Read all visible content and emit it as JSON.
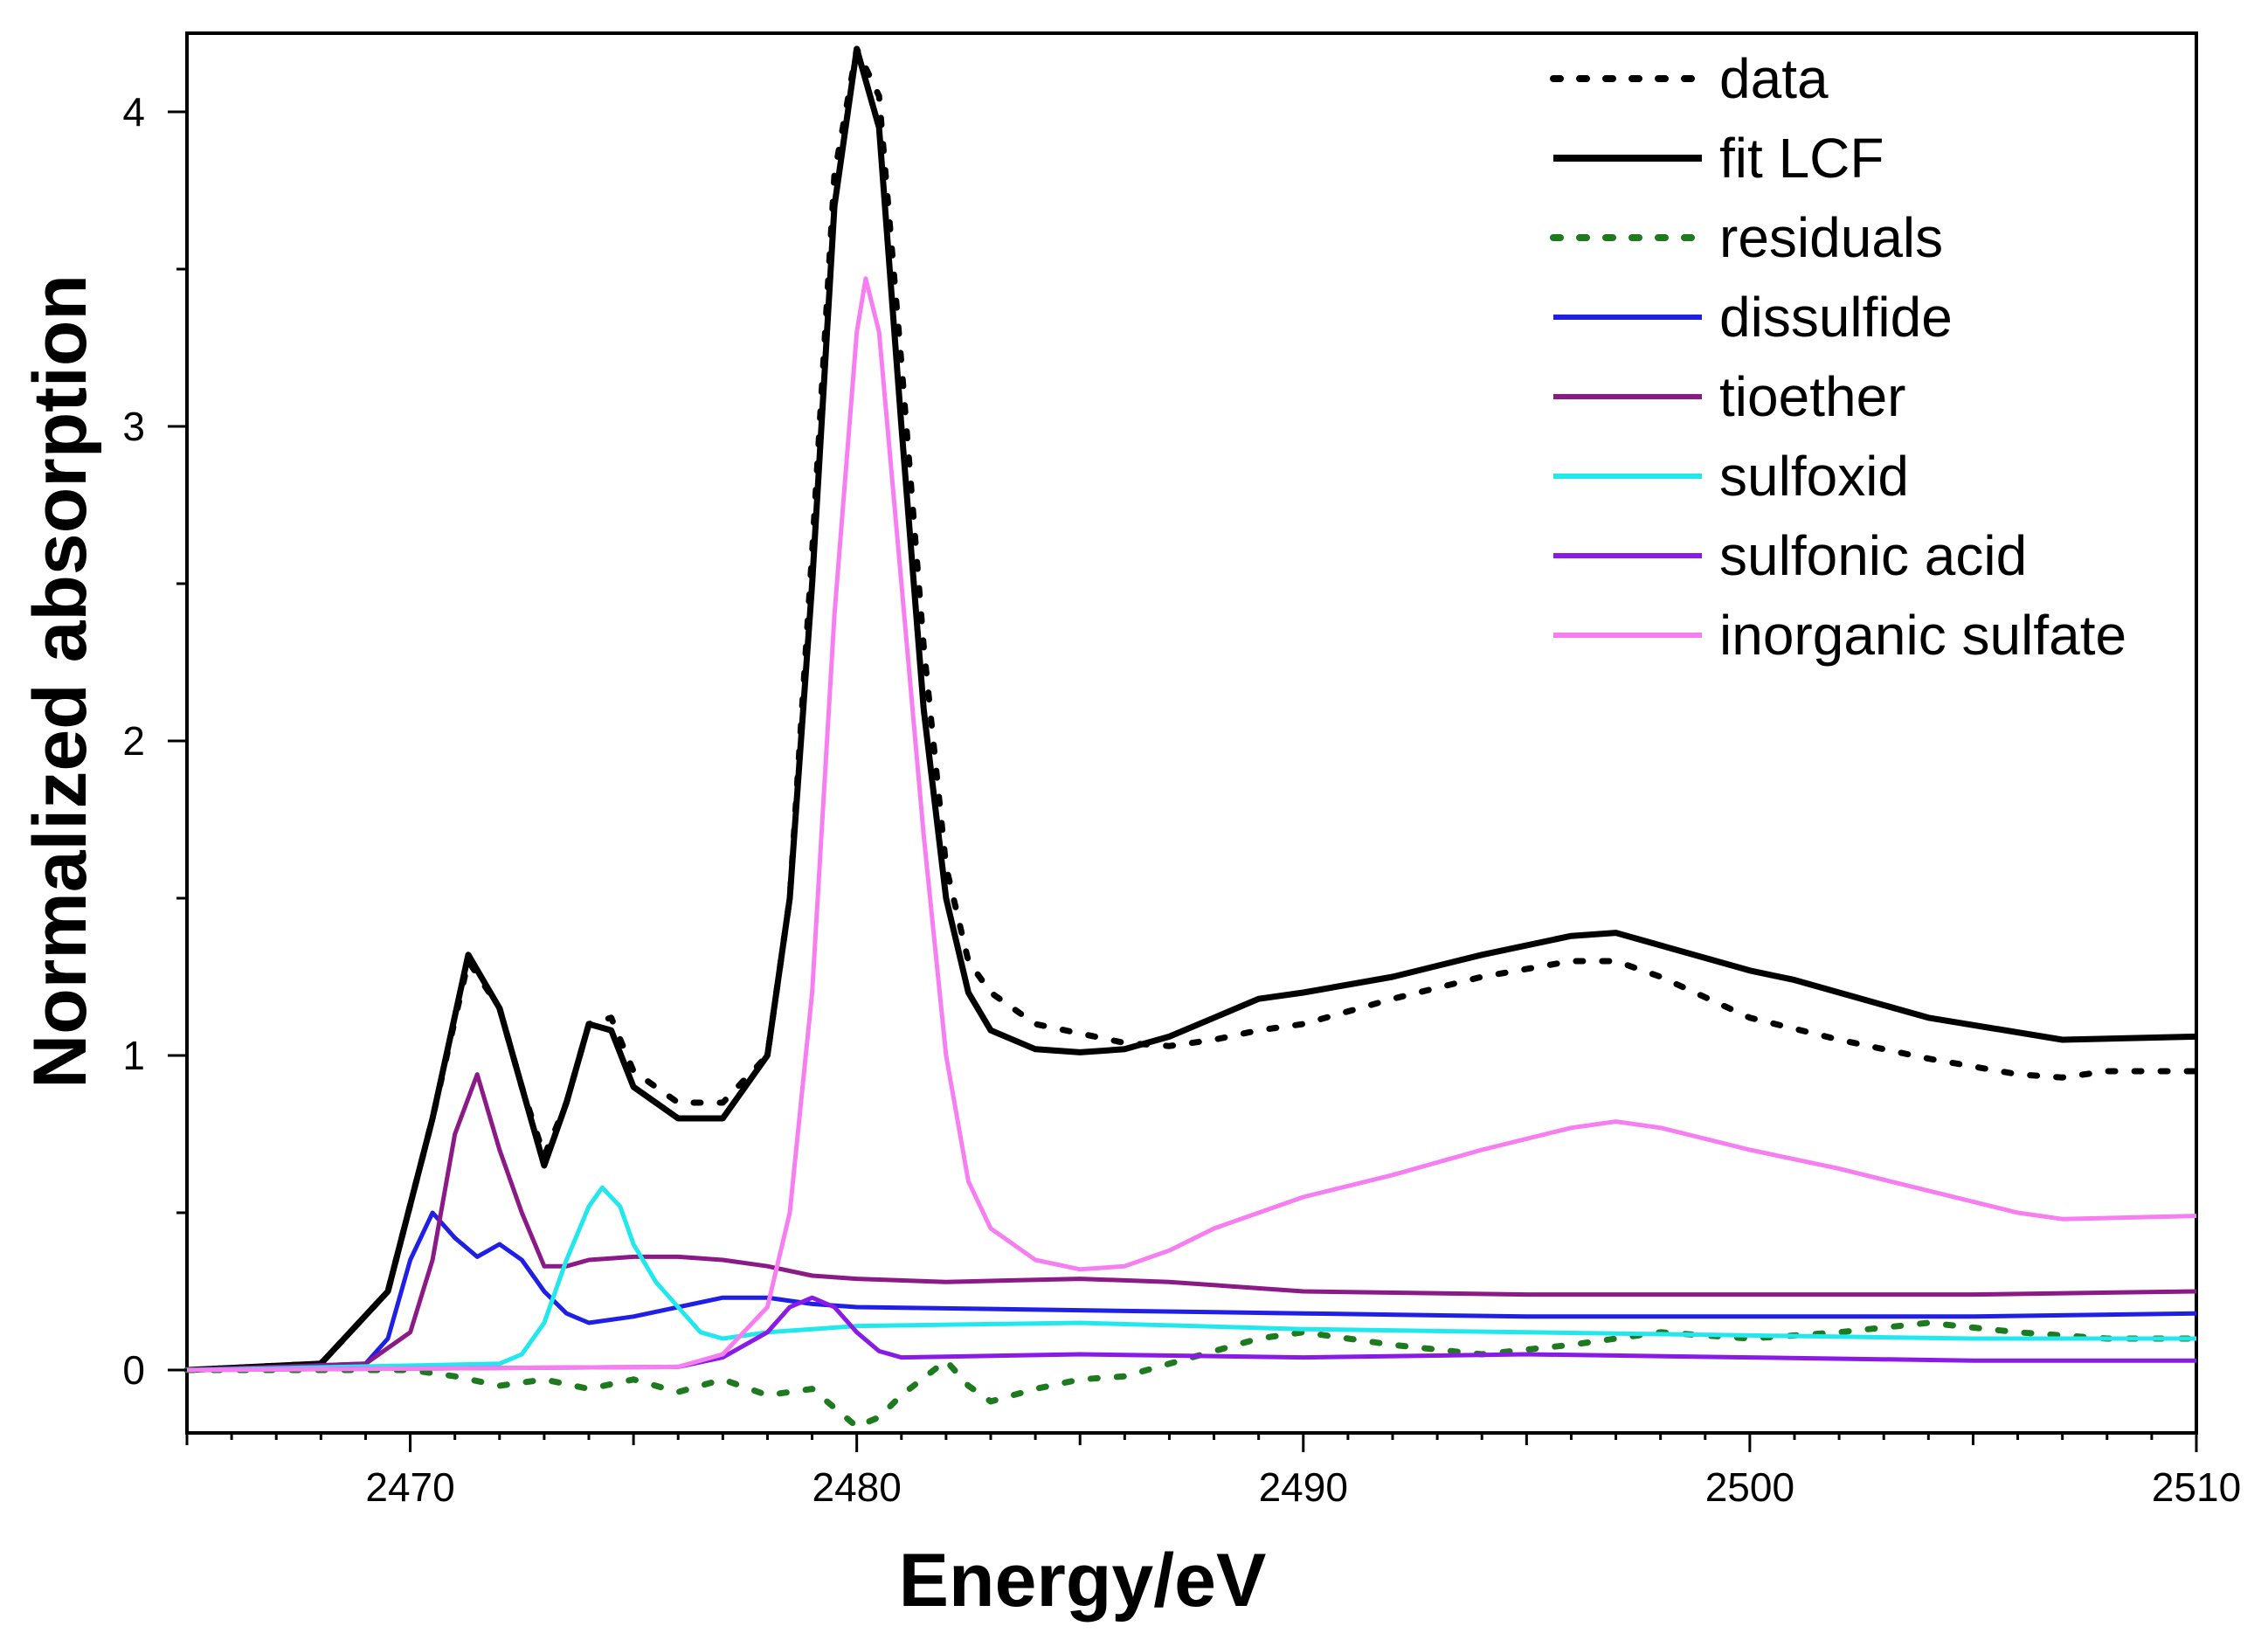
{
  "chart_data": {
    "type": "line",
    "title": "",
    "xlabel": "Energy/eV",
    "ylabel": "Normalized absorption",
    "xlim": [
      2465,
      2510
    ],
    "ylim": [
      -0.2,
      4.25
    ],
    "x_major_ticks": [
      2470,
      2480,
      2490,
      2500,
      2510
    ],
    "x_tick_labels": [
      "2470",
      "2480",
      "2490",
      "2500",
      "2510"
    ],
    "y_major_ticks": [
      0,
      1,
      2,
      3,
      4
    ],
    "y_tick_labels": [
      "0",
      "1",
      "2",
      "3",
      "4"
    ],
    "grid": false,
    "legend_position": "top-right",
    "series": [
      {
        "name": "data",
        "color": "#000000",
        "style": "dotted",
        "width": 7,
        "points": [
          [
            2465,
            0
          ],
          [
            2468,
            0.02
          ],
          [
            2469.5,
            0.25
          ],
          [
            2470.5,
            0.8
          ],
          [
            2471.3,
            1.3
          ],
          [
            2472,
            1.15
          ],
          [
            2472.5,
            0.9
          ],
          [
            2473,
            0.68
          ],
          [
            2473.5,
            0.85
          ],
          [
            2474,
            1.1
          ],
          [
            2474.5,
            1.12
          ],
          [
            2475,
            0.95
          ],
          [
            2476,
            0.85
          ],
          [
            2477,
            0.85
          ],
          [
            2478,
            1.0
          ],
          [
            2478.5,
            1.5
          ],
          [
            2479,
            2.6
          ],
          [
            2479.5,
            3.8
          ],
          [
            2480,
            4.2
          ],
          [
            2480.5,
            4.05
          ],
          [
            2481,
            3.2
          ],
          [
            2481.5,
            2.3
          ],
          [
            2482,
            1.6
          ],
          [
            2482.5,
            1.3
          ],
          [
            2483,
            1.2
          ],
          [
            2484,
            1.1
          ],
          [
            2485,
            1.07
          ],
          [
            2486,
            1.04
          ],
          [
            2487,
            1.03
          ],
          [
            2488,
            1.05
          ],
          [
            2489,
            1.08
          ],
          [
            2490,
            1.1
          ],
          [
            2492,
            1.18
          ],
          [
            2494,
            1.25
          ],
          [
            2496,
            1.3
          ],
          [
            2497,
            1.3
          ],
          [
            2498,
            1.25
          ],
          [
            2500,
            1.12
          ],
          [
            2502,
            1.05
          ],
          [
            2504,
            0.99
          ],
          [
            2506,
            0.94
          ],
          [
            2507,
            0.93
          ],
          [
            2508,
            0.95
          ],
          [
            2510,
            0.95
          ]
        ]
      },
      {
        "name": "fit LCF",
        "color": "#000000",
        "style": "solid",
        "width": 7,
        "points": [
          [
            2465,
            0
          ],
          [
            2468,
            0.02
          ],
          [
            2469.5,
            0.25
          ],
          [
            2470.5,
            0.8
          ],
          [
            2471.3,
            1.32
          ],
          [
            2472,
            1.15
          ],
          [
            2472.5,
            0.9
          ],
          [
            2473,
            0.65
          ],
          [
            2473.5,
            0.85
          ],
          [
            2474,
            1.1
          ],
          [
            2474.5,
            1.08
          ],
          [
            2475,
            0.9
          ],
          [
            2476,
            0.8
          ],
          [
            2477,
            0.8
          ],
          [
            2478,
            1.0
          ],
          [
            2478.5,
            1.5
          ],
          [
            2479,
            2.5
          ],
          [
            2479.5,
            3.7
          ],
          [
            2480,
            4.2
          ],
          [
            2480.5,
            3.95
          ],
          [
            2481,
            3.0
          ],
          [
            2481.5,
            2.1
          ],
          [
            2482,
            1.5
          ],
          [
            2482.5,
            1.2
          ],
          [
            2483,
            1.08
          ],
          [
            2484,
            1.02
          ],
          [
            2485,
            1.01
          ],
          [
            2486,
            1.02
          ],
          [
            2487,
            1.06
          ],
          [
            2488,
            1.12
          ],
          [
            2489,
            1.18
          ],
          [
            2490,
            1.2
          ],
          [
            2492,
            1.25
          ],
          [
            2494,
            1.32
          ],
          [
            2496,
            1.38
          ],
          [
            2497,
            1.39
          ],
          [
            2498,
            1.35
          ],
          [
            2500,
            1.27
          ],
          [
            2501,
            1.24
          ],
          [
            2502,
            1.2
          ],
          [
            2504,
            1.12
          ],
          [
            2507,
            1.05
          ],
          [
            2510,
            1.06
          ]
        ]
      },
      {
        "name": "residuals",
        "color": "#1e7a1e",
        "style": "dotted",
        "width": 7,
        "points": [
          [
            2465,
            0
          ],
          [
            2470,
            0
          ],
          [
            2471,
            -0.02
          ],
          [
            2472,
            -0.05
          ],
          [
            2473,
            -0.03
          ],
          [
            2474,
            -0.06
          ],
          [
            2475,
            -0.03
          ],
          [
            2476,
            -0.07
          ],
          [
            2477,
            -0.03
          ],
          [
            2478,
            -0.08
          ],
          [
            2479,
            -0.06
          ],
          [
            2479.5,
            -0.12
          ],
          [
            2480,
            -0.18
          ],
          [
            2480.5,
            -0.15
          ],
          [
            2481,
            -0.08
          ],
          [
            2482,
            0.03
          ],
          [
            2482.5,
            -0.05
          ],
          [
            2483,
            -0.1
          ],
          [
            2484,
            -0.06
          ],
          [
            2485,
            -0.03
          ],
          [
            2486,
            -0.02
          ],
          [
            2487,
            0.02
          ],
          [
            2488,
            0.06
          ],
          [
            2489,
            0.1
          ],
          [
            2490,
            0.12
          ],
          [
            2492,
            0.08
          ],
          [
            2494,
            0.05
          ],
          [
            2496,
            0.08
          ],
          [
            2498,
            0.12
          ],
          [
            2500,
            0.1
          ],
          [
            2502,
            0.12
          ],
          [
            2504,
            0.15
          ],
          [
            2506,
            0.12
          ],
          [
            2508,
            0.1
          ],
          [
            2510,
            0.1
          ]
        ]
      },
      {
        "name": "dissulfide",
        "color": "#1f1fe6",
        "style": "solid",
        "width": 5,
        "points": [
          [
            2465,
            0
          ],
          [
            2469,
            0.02
          ],
          [
            2469.5,
            0.1
          ],
          [
            2470,
            0.35
          ],
          [
            2470.5,
            0.5
          ],
          [
            2471,
            0.42
          ],
          [
            2471.5,
            0.36
          ],
          [
            2472,
            0.4
          ],
          [
            2472.5,
            0.35
          ],
          [
            2473,
            0.25
          ],
          [
            2473.5,
            0.18
          ],
          [
            2474,
            0.15
          ],
          [
            2475,
            0.17
          ],
          [
            2476,
            0.2
          ],
          [
            2477,
            0.23
          ],
          [
            2478,
            0.23
          ],
          [
            2479,
            0.21
          ],
          [
            2480,
            0.2
          ],
          [
            2485,
            0.19
          ],
          [
            2490,
            0.18
          ],
          [
            2495,
            0.17
          ],
          [
            2500,
            0.17
          ],
          [
            2505,
            0.17
          ],
          [
            2510,
            0.18
          ]
        ]
      },
      {
        "name": "tioether",
        "color": "#8b1a86",
        "style": "solid",
        "width": 5,
        "points": [
          [
            2465,
            0
          ],
          [
            2469,
            0.02
          ],
          [
            2470,
            0.12
          ],
          [
            2470.5,
            0.35
          ],
          [
            2471,
            0.75
          ],
          [
            2471.5,
            0.94
          ],
          [
            2472,
            0.7
          ],
          [
            2472.5,
            0.5
          ],
          [
            2473,
            0.33
          ],
          [
            2473.5,
            0.33
          ],
          [
            2474,
            0.35
          ],
          [
            2475,
            0.36
          ],
          [
            2476,
            0.36
          ],
          [
            2477,
            0.35
          ],
          [
            2478,
            0.33
          ],
          [
            2479,
            0.3
          ],
          [
            2480,
            0.29
          ],
          [
            2482,
            0.28
          ],
          [
            2485,
            0.29
          ],
          [
            2487,
            0.28
          ],
          [
            2490,
            0.25
          ],
          [
            2495,
            0.24
          ],
          [
            2500,
            0.24
          ],
          [
            2505,
            0.24
          ],
          [
            2510,
            0.25
          ]
        ]
      },
      {
        "name": "sulfoxid",
        "color": "#22e8ee",
        "style": "solid",
        "width": 5,
        "points": [
          [
            2465,
            0
          ],
          [
            2472,
            0.02
          ],
          [
            2472.5,
            0.05
          ],
          [
            2473,
            0.15
          ],
          [
            2473.5,
            0.35
          ],
          [
            2474,
            0.52
          ],
          [
            2474.3,
            0.58
          ],
          [
            2474.7,
            0.52
          ],
          [
            2475,
            0.4
          ],
          [
            2475.5,
            0.28
          ],
          [
            2476,
            0.2
          ],
          [
            2476.5,
            0.12
          ],
          [
            2477,
            0.1
          ],
          [
            2478,
            0.12
          ],
          [
            2479,
            0.13
          ],
          [
            2480,
            0.14
          ],
          [
            2485,
            0.15
          ],
          [
            2490,
            0.13
          ],
          [
            2495,
            0.12
          ],
          [
            2500,
            0.11
          ],
          [
            2505,
            0.1
          ],
          [
            2510,
            0.1
          ]
        ]
      },
      {
        "name": "sulfonic acid",
        "color": "#8a1ae6",
        "style": "solid",
        "width": 5,
        "points": [
          [
            2465,
            0
          ],
          [
            2476,
            0.01
          ],
          [
            2477,
            0.04
          ],
          [
            2478,
            0.12
          ],
          [
            2478.5,
            0.2
          ],
          [
            2479,
            0.23
          ],
          [
            2479.5,
            0.2
          ],
          [
            2480,
            0.12
          ],
          [
            2480.5,
            0.06
          ],
          [
            2481,
            0.04
          ],
          [
            2485,
            0.05
          ],
          [
            2490,
            0.04
          ],
          [
            2495,
            0.05
          ],
          [
            2500,
            0.04
          ],
          [
            2505,
            0.03
          ],
          [
            2510,
            0.03
          ]
        ]
      },
      {
        "name": "inorganic sulfate",
        "color": "#f77ef0",
        "style": "solid",
        "width": 5,
        "points": [
          [
            2465,
            0
          ],
          [
            2476,
            0.01
          ],
          [
            2477,
            0.05
          ],
          [
            2478,
            0.2
          ],
          [
            2478.5,
            0.5
          ],
          [
            2479,
            1.2
          ],
          [
            2479.5,
            2.4
          ],
          [
            2480,
            3.3
          ],
          [
            2480.2,
            3.47
          ],
          [
            2480.5,
            3.3
          ],
          [
            2481,
            2.5
          ],
          [
            2481.5,
            1.7
          ],
          [
            2482,
            1.0
          ],
          [
            2482.5,
            0.6
          ],
          [
            2483,
            0.45
          ],
          [
            2484,
            0.35
          ],
          [
            2485,
            0.32
          ],
          [
            2486,
            0.33
          ],
          [
            2487,
            0.38
          ],
          [
            2488,
            0.45
          ],
          [
            2490,
            0.55
          ],
          [
            2492,
            0.62
          ],
          [
            2494,
            0.7
          ],
          [
            2496,
            0.77
          ],
          [
            2497,
            0.79
          ],
          [
            2498,
            0.77
          ],
          [
            2500,
            0.7
          ],
          [
            2502,
            0.64
          ],
          [
            2504,
            0.57
          ],
          [
            2506,
            0.5
          ],
          [
            2507,
            0.48
          ],
          [
            2510,
            0.49
          ]
        ]
      }
    ]
  }
}
